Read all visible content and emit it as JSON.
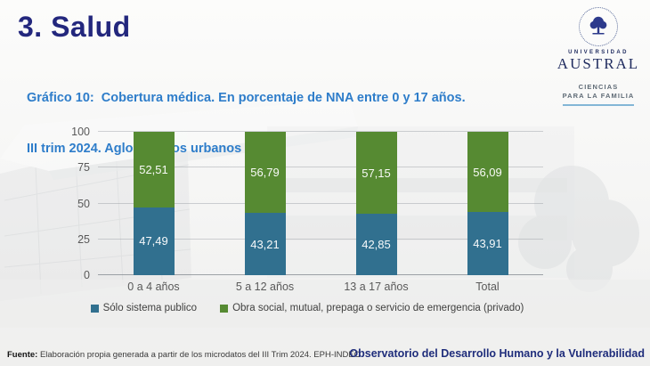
{
  "slide": {
    "title": "3. Salud",
    "subtitle_line1": "Gráfico 10:  Cobertura médica. En porcentaje de NNA entre 0 y 17 años.",
    "subtitle_line2": "III trim 2024. Aglomerados urbanos",
    "footer_source_label": "Fuente:",
    "footer_source_text": " Elaboración propia generada a partir de los microdatos del III Trim 2024. EPH-INDEC",
    "footer_right": "Observatorio del Desarrollo Humano y la Vulnerabilidad"
  },
  "logo": {
    "seal_icon": "tree-seal-icon",
    "university_small": "UNIVERSIDAD",
    "university_name": "AUSTRAL",
    "dept_line1": "CIENCIAS",
    "dept_line2": "PARA LA FAMILIA"
  },
  "colors": {
    "title_navy": "#23277d",
    "subtitle_blue": "#2e7dca",
    "footer_navy": "#1f2d7b",
    "bar_blue": "#31708f",
    "bar_green": "#568a32",
    "axis_gray": "#595959"
  },
  "chart_data": {
    "type": "bar",
    "subtype": "stacked",
    "title": "",
    "xlabel": "",
    "ylabel": "",
    "categories": [
      "0 a 4 años",
      "5 a 12 años",
      "13 a 17 años",
      "Total"
    ],
    "series": [
      {
        "name": "Sólo sistema publico",
        "color": "#31708f",
        "values": [
          47.49,
          43.21,
          42.85,
          43.91
        ]
      },
      {
        "name": "Obra social, mutual, prepaga o servicio de emergencia (privado)",
        "color": "#568a32",
        "values": [
          52.51,
          56.79,
          57.15,
          56.09
        ]
      }
    ],
    "y_ticks": [
      0,
      25,
      50,
      75,
      100
    ],
    "ylim": [
      0,
      100
    ],
    "grid": true,
    "legend_position": "bottom",
    "decimal_separator": ","
  }
}
